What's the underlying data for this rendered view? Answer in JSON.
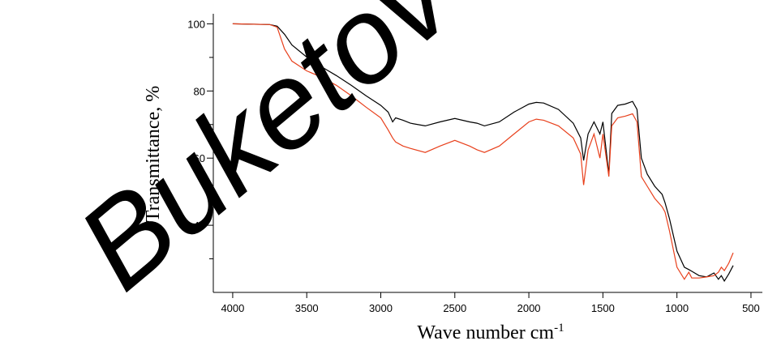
{
  "chart_data": {
    "type": "line",
    "y_label": "Transmittance, %",
    "x_label": "Wave number cm",
    "x_label_sup": "-1",
    "watermark": "Buketov",
    "xlim": [
      4131,
      423
    ],
    "ylim": [
      20,
      103
    ],
    "xticks": [
      4000,
      3500,
      3000,
      2500,
      2000,
      1500,
      1000,
      500
    ],
    "yticks": [
      100,
      80,
      60,
      40
    ],
    "yticks_minor": [
      90,
      70,
      50,
      30
    ],
    "x": [
      4000,
      3750,
      3700,
      3650,
      3600,
      3500,
      3400,
      3300,
      3200,
      3100,
      3000,
      2950,
      2920,
      2900,
      2850,
      2800,
      2700,
      2600,
      2500,
      2400,
      2350,
      2300,
      2200,
      2100,
      2000,
      1950,
      1900,
      1800,
      1700,
      1650,
      1630,
      1600,
      1560,
      1520,
      1500,
      1460,
      1440,
      1400,
      1350,
      1300,
      1270,
      1240,
      1200,
      1150,
      1100,
      1080,
      1050,
      1000,
      950,
      920,
      900,
      850,
      800,
      750,
      720,
      700,
      680,
      650,
      620
    ],
    "series": [
      {
        "color": "#000000",
        "values": [
          100,
          99.8,
          99.3,
          96.9,
          93.7,
          90.1,
          87.2,
          84.6,
          81.7,
          78.6,
          75.7,
          73.7,
          70.8,
          72,
          71.3,
          70.4,
          69.6,
          70.8,
          71.8,
          70.8,
          70.4,
          69.6,
          70.8,
          73.7,
          76.1,
          76.6,
          76.4,
          74.5,
          70.4,
          66,
          59.3,
          67.2,
          70.8,
          67.2,
          70.8,
          55.2,
          73.3,
          75.7,
          76.1,
          76.9,
          74.5,
          60,
          55.2,
          51.6,
          49.2,
          46.7,
          41.9,
          32.3,
          27.5,
          26.8,
          26.3,
          25,
          24.6,
          25.8,
          23.9,
          25,
          23.4,
          25.5,
          28
        ]
      },
      {
        "color": "#e8401c",
        "values": [
          100,
          99.8,
          99,
          92.5,
          88.9,
          86,
          84.1,
          81.7,
          78.6,
          75.2,
          72,
          68.4,
          66,
          64.8,
          63.6,
          62.9,
          61.7,
          63.6,
          65.3,
          63.6,
          62.5,
          61.7,
          63.6,
          67.2,
          70.8,
          71.6,
          71.3,
          69.6,
          66,
          61.2,
          52,
          62.4,
          67.2,
          60,
          67.2,
          54.5,
          69.6,
          72,
          72.5,
          73.2,
          70.8,
          54.5,
          51.6,
          48,
          45.5,
          43.9,
          38.3,
          27.5,
          23.9,
          26,
          24.3,
          24.3,
          24.6,
          25,
          26,
          27.5,
          26.5,
          28.7,
          31.8
        ]
      }
    ]
  }
}
